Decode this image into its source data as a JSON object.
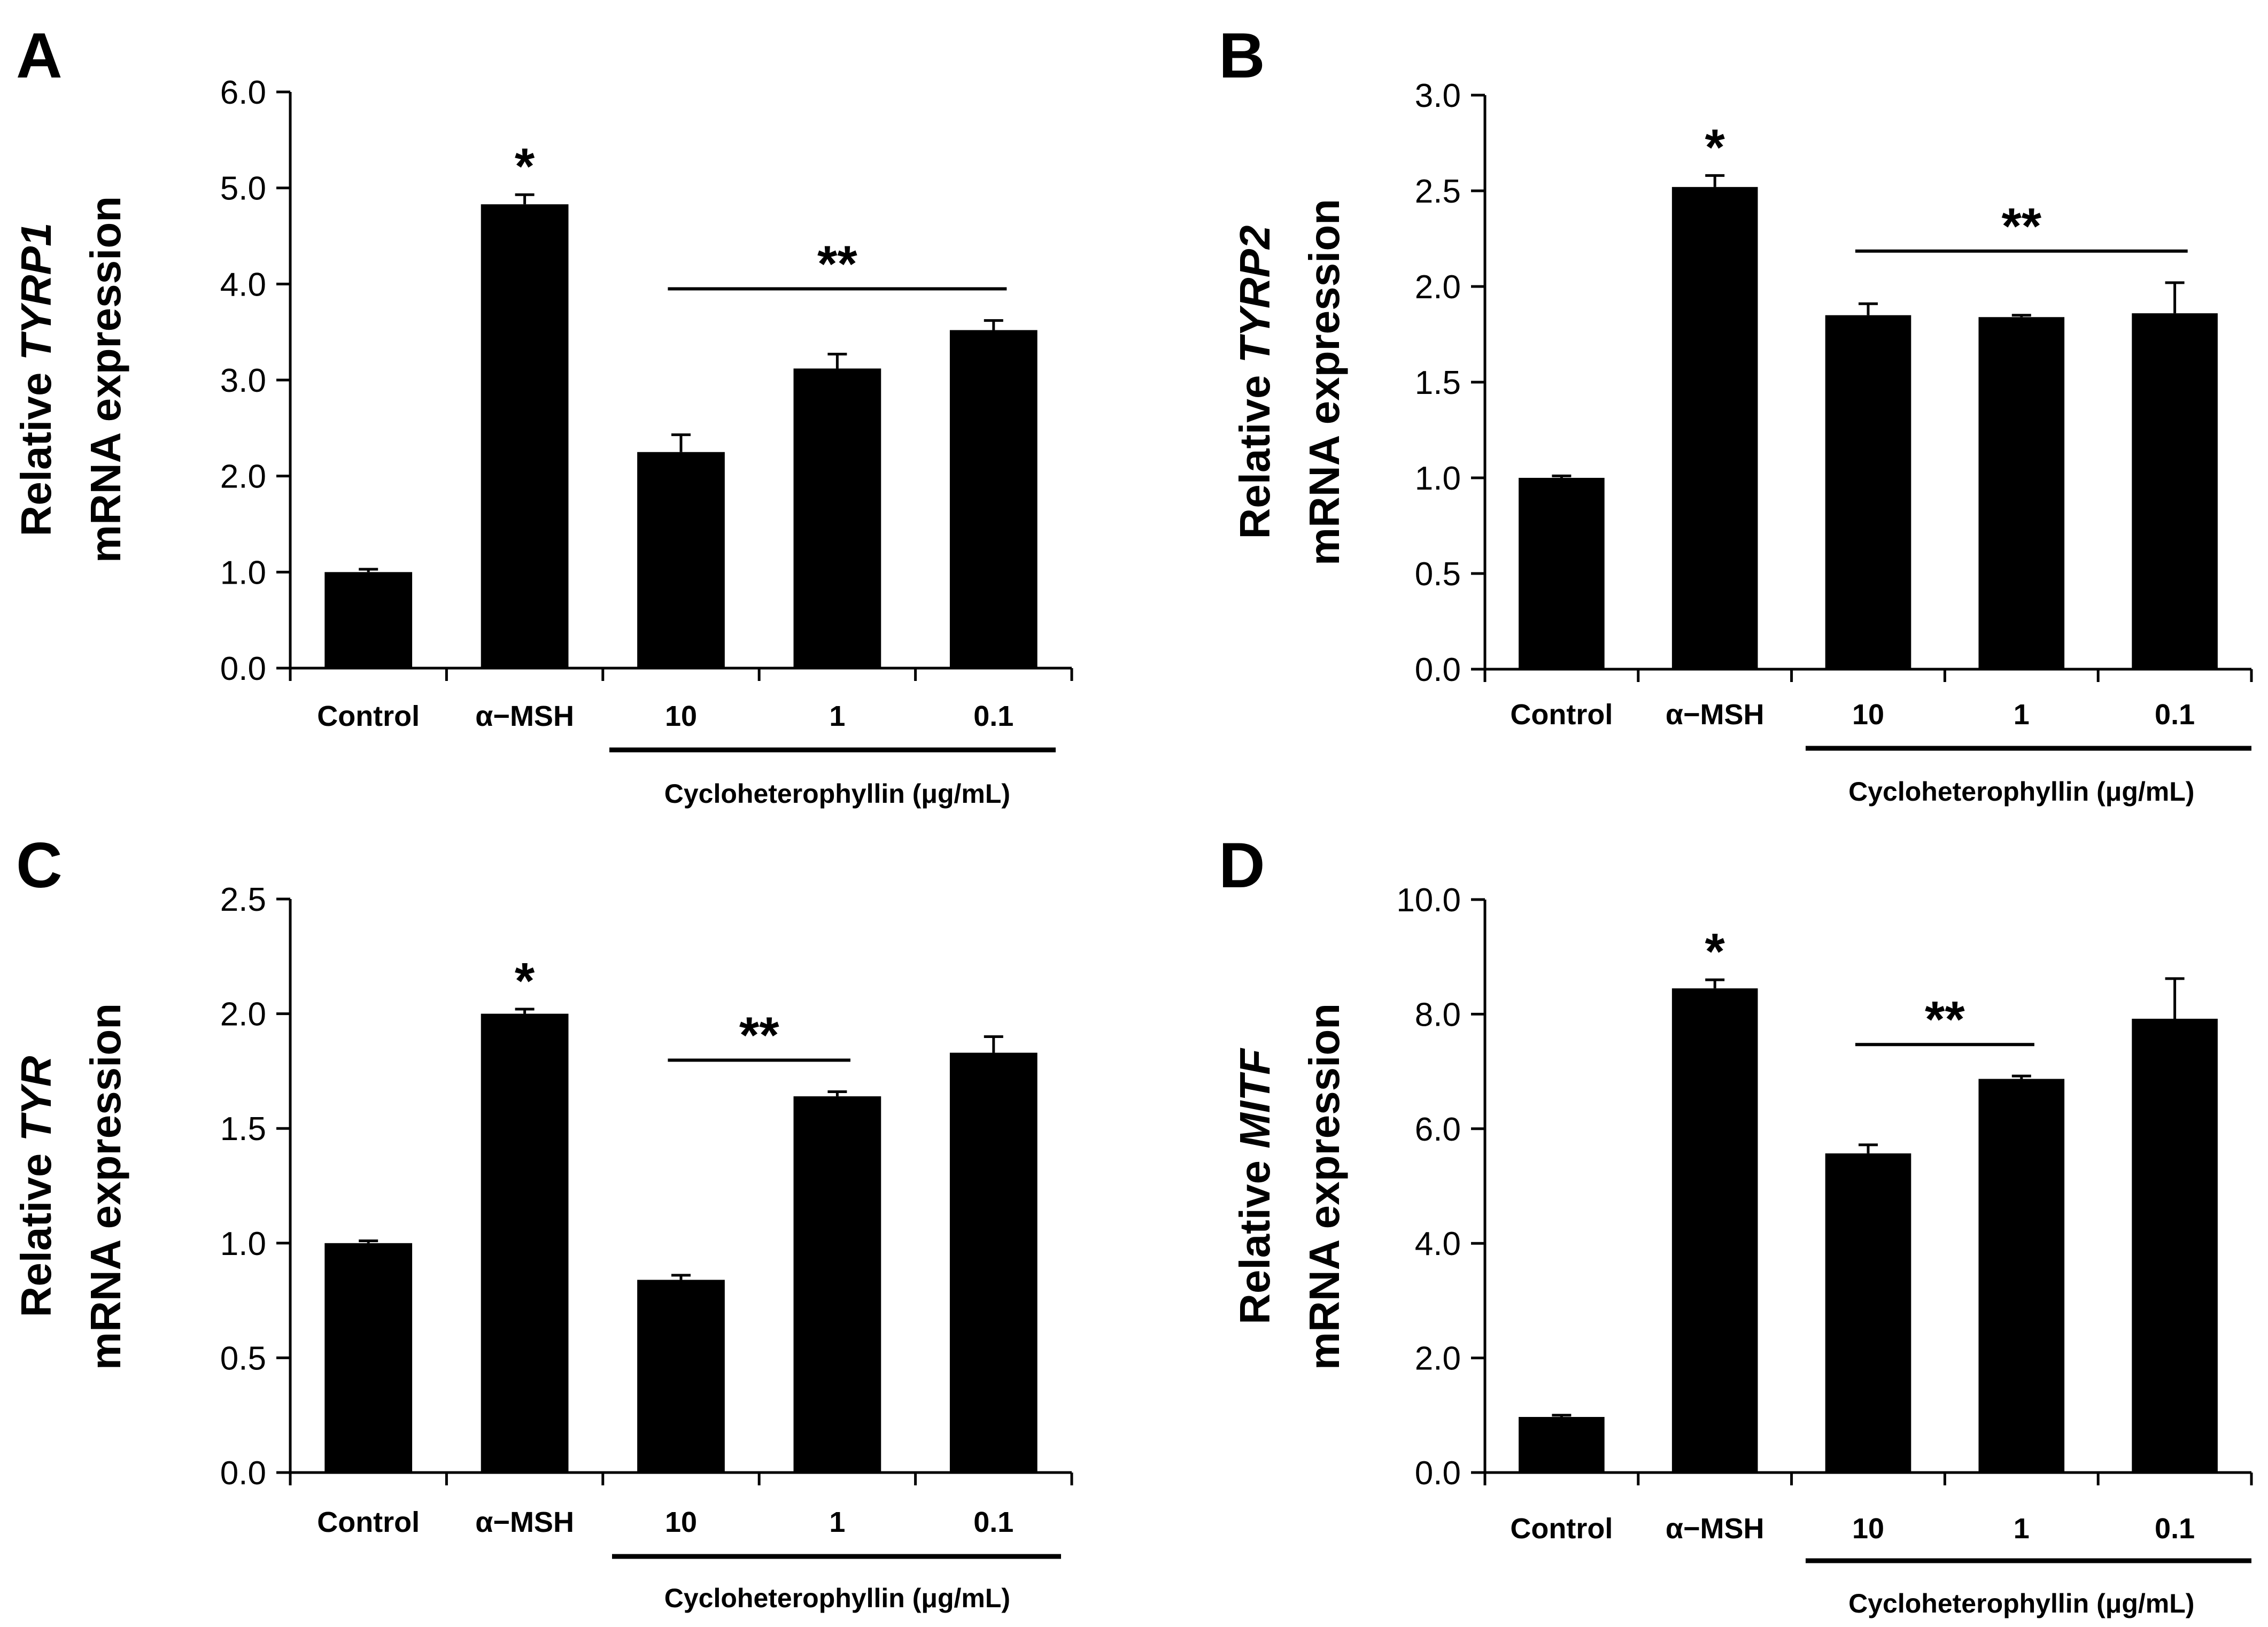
{
  "figure": {
    "background": "#ffffff",
    "bar_color": "#000000"
  },
  "chart_data": [
    {
      "type": "bar",
      "panel": "A",
      "ylabel_prefix": "Relative",
      "gene": "TYRP1",
      "ylabel_suffix": "mRNA expression",
      "categories": [
        "Control",
        "α−MSH",
        "10",
        "1",
        "0.1"
      ],
      "values": [
        1.0,
        4.83,
        2.25,
        3.12,
        3.52
      ],
      "errors": [
        0.03,
        0.1,
        0.18,
        0.15,
        0.1
      ],
      "ylim": [
        0,
        6
      ],
      "yticks": [
        "0.0",
        "1.0",
        "2.0",
        "3.0",
        "4.0",
        "5.0",
        "6.0"
      ],
      "group_label": "Cycloheterophyllin (μg/mL)",
      "group_categories": [
        2,
        4
      ],
      "annotations": [
        {
          "text": "*",
          "category": 1
        },
        {
          "text": "**",
          "span": [
            2,
            4
          ]
        }
      ]
    },
    {
      "type": "bar",
      "panel": "B",
      "ylabel_prefix": "Relative",
      "gene": "TYRP2",
      "ylabel_suffix": "mRNA expression",
      "categories": [
        "Control",
        "α−MSH",
        "10",
        "1",
        "0.1"
      ],
      "values": [
        1.0,
        2.52,
        1.85,
        1.84,
        1.86
      ],
      "errors": [
        0.01,
        0.06,
        0.06,
        0.01,
        0.16
      ],
      "ylim": [
        0,
        3
      ],
      "yticks": [
        "0.0",
        "0.5",
        "1.0",
        "1.5",
        "2.0",
        "2.5",
        "3.0"
      ],
      "group_label": "Cycloheterophyllin (μg/mL)",
      "group_categories": [
        2,
        4
      ],
      "annotations": [
        {
          "text": "*",
          "category": 1
        },
        {
          "text": "**",
          "span": [
            2,
            4
          ]
        }
      ]
    },
    {
      "type": "bar",
      "panel": "C",
      "ylabel_prefix": "Relative",
      "gene": "TYR",
      "ylabel_suffix": "mRNA expression",
      "categories": [
        "Control",
        "α−MSH",
        "10",
        "1",
        "0.1"
      ],
      "values": [
        1.0,
        2.0,
        0.84,
        1.64,
        1.83
      ],
      "errors": [
        0.01,
        0.02,
        0.02,
        0.02,
        0.07
      ],
      "ylim": [
        0,
        2.5
      ],
      "yticks": [
        "0.0",
        "0.5",
        "1.0",
        "1.5",
        "2.0",
        "2.5"
      ],
      "group_label": "Cycloheterophyllin (μg/mL)",
      "group_categories": [
        2,
        4
      ],
      "annotations": [
        {
          "text": "*",
          "category": 1
        },
        {
          "text": "**",
          "span": [
            2,
            3
          ]
        }
      ]
    },
    {
      "type": "bar",
      "panel": "D",
      "ylabel_prefix": "Relative",
      "gene": "MITF",
      "ylabel_suffix": "mRNA expression",
      "categories": [
        "Control",
        "α−MSH",
        "10",
        "1",
        "0.1"
      ],
      "values": [
        0.97,
        8.45,
        5.57,
        6.87,
        7.92
      ],
      "errors": [
        0.03,
        0.15,
        0.15,
        0.05,
        0.7
      ],
      "ylim": [
        0,
        10
      ],
      "yticks": [
        "0.0",
        "2.0",
        "4.0",
        "6.0",
        "8.0",
        "10.0"
      ],
      "group_label": "Cycloheterophyllin (μg/mL)",
      "group_categories": [
        2,
        4
      ],
      "annotations": [
        {
          "text": "*",
          "category": 1
        },
        {
          "text": "**",
          "span": [
            2,
            3
          ]
        }
      ]
    }
  ]
}
